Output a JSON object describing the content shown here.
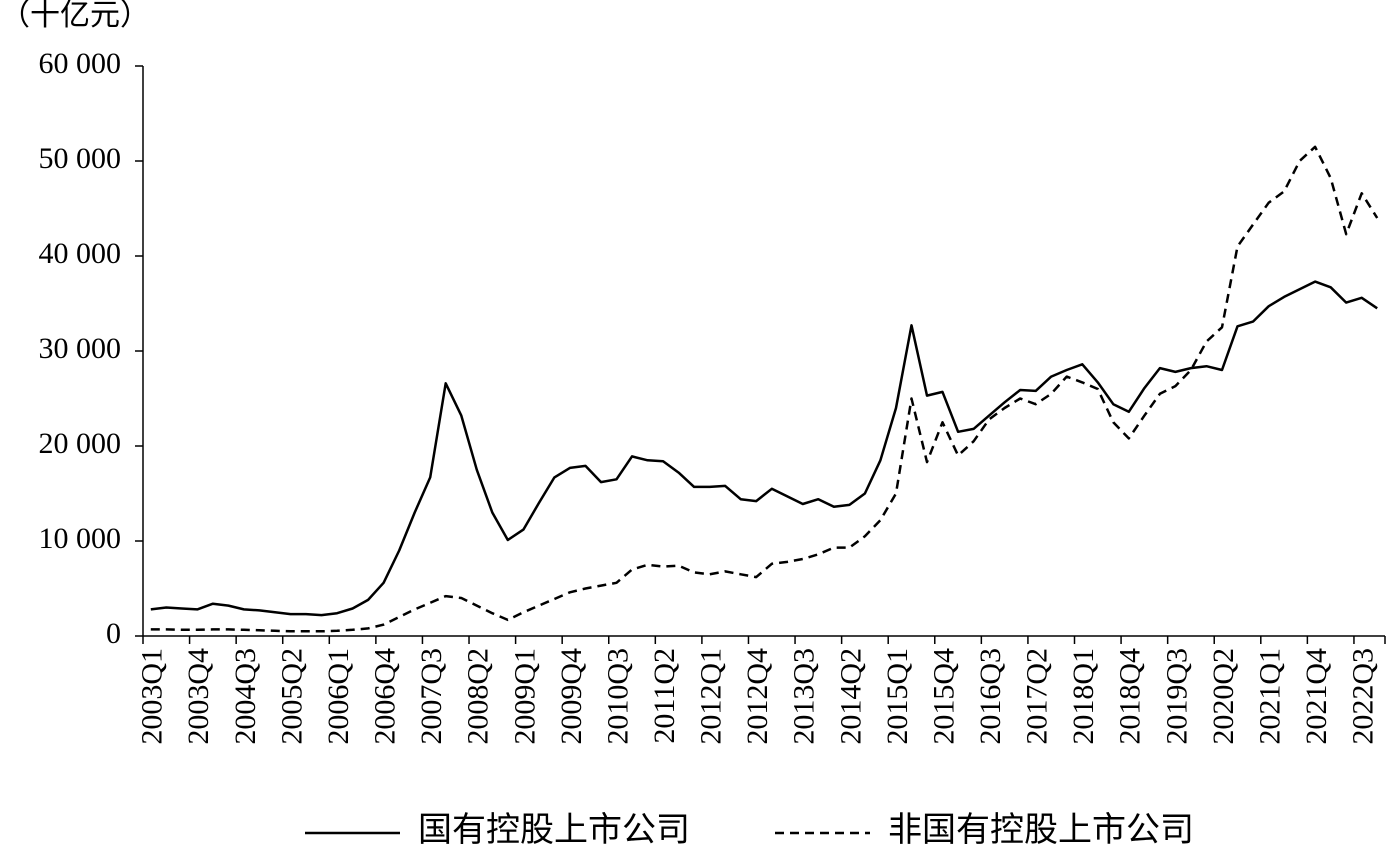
{
  "chart_data": {
    "type": "line",
    "y_label": "（十亿元）",
    "categories": [
      "2003Q1",
      null,
      null,
      "2003Q4",
      null,
      null,
      "2004Q3",
      null,
      null,
      "2005Q2",
      null,
      null,
      "2006Q1",
      null,
      null,
      "2006Q4",
      null,
      null,
      "2007Q3",
      null,
      null,
      "2008Q2",
      null,
      null,
      "2009Q1",
      null,
      null,
      "2009Q4",
      null,
      null,
      "2010Q3",
      null,
      null,
      "2011Q2",
      null,
      null,
      "2012Q1",
      null,
      null,
      "2012Q4",
      null,
      null,
      "2013Q3",
      null,
      null,
      "2014Q2",
      null,
      null,
      "2015Q1",
      null,
      null,
      "2015Q4",
      null,
      null,
      "2016Q3",
      null,
      null,
      "2017Q2",
      null,
      null,
      "2018Q1",
      null,
      null,
      "2018Q4",
      null,
      null,
      "2019Q3",
      null,
      null,
      "2020Q2",
      null,
      null,
      "2021Q1",
      null,
      null,
      "2021Q4",
      null,
      null,
      "2022Q3",
      null
    ],
    "series": [
      {
        "name": "国有控股上市公司",
        "color": "#000000",
        "dash": false,
        "values": [
          2800,
          3000,
          2900,
          2800,
          3400,
          3200,
          2800,
          2700,
          2500,
          2300,
          2300,
          2200,
          2400,
          2900,
          3800,
          5600,
          9000,
          13000,
          16700,
          26600,
          23200,
          17500,
          13000,
          10100,
          11200,
          14000,
          16700,
          17700,
          17900,
          16200,
          16500,
          18900,
          18500,
          18400,
          17200,
          15700,
          15700,
          15800,
          14400,
          14200,
          15500,
          14700,
          13900,
          14400,
          13600,
          13800,
          15000,
          18500,
          24000,
          32700,
          25300,
          25700,
          21500,
          21800,
          23200,
          24600,
          25900,
          25800,
          27300,
          28000,
          28600,
          26700,
          24400,
          23600,
          26100,
          28200,
          27800,
          28200,
          28400,
          28000,
          32600,
          33100,
          34700,
          35700,
          36500,
          37300,
          36700,
          35100,
          35600,
          34500
        ]
      },
      {
        "name": "非国有控股上市公司",
        "color": "#000000",
        "dash": true,
        "values": [
          700,
          700,
          650,
          650,
          700,
          700,
          650,
          600,
          550,
          500,
          500,
          500,
          550,
          650,
          800,
          1200,
          2000,
          2800,
          3500,
          4200,
          4000,
          3200,
          2400,
          1700,
          2500,
          3200,
          3900,
          4600,
          5000,
          5300,
          5600,
          7000,
          7500,
          7300,
          7400,
          6700,
          6500,
          6800,
          6500,
          6200,
          7600,
          7800,
          8100,
          8600,
          9300,
          9300,
          10500,
          12200,
          15000,
          25000,
          18300,
          22500,
          19000,
          20500,
          22800,
          24000,
          25000,
          24400,
          25500,
          27300,
          26700,
          26000,
          22500,
          20800,
          23200,
          25500,
          26300,
          28000,
          31000,
          32500,
          41000,
          43300,
          45600,
          46800,
          50000,
          51500,
          48200,
          42300,
          46600,
          44000
        ]
      }
    ],
    "ylim": [
      0,
      60000
    ],
    "yticks": [
      0,
      {
        "value": 10000,
        "label": "10 000"
      },
      {
        "value": 20000,
        "label": "20 000"
      },
      {
        "value": 30000,
        "label": "30 000"
      },
      {
        "value": 40000,
        "label": "40 000"
      },
      {
        "value": 50000,
        "label": "50 000"
      },
      {
        "value": 60000,
        "label": "60 000"
      }
    ],
    "legend": "bottom"
  }
}
